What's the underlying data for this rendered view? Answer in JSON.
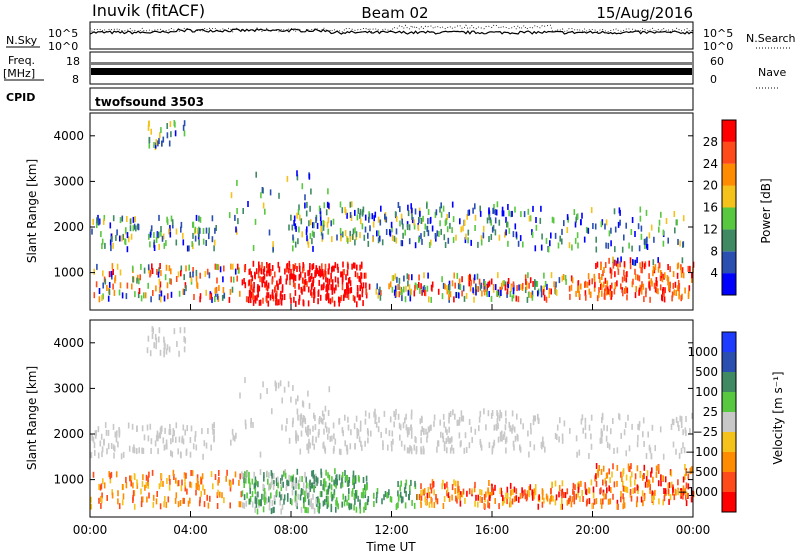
{
  "header": {
    "station": "Inuvik (fitACF)",
    "beam": "Beam 02",
    "date": "15/Aug/2016"
  },
  "side_labels": {
    "nsky": "N.Sky",
    "nsearch": "N.Search",
    "freq": "Freq.",
    "freq_unit": "[MHz]",
    "nave": "Nave",
    "cpid": "CPID",
    "cpid_value": "twofsound 3503"
  },
  "noise_panel": {
    "ticks": [
      "10^5",
      "10^0"
    ]
  },
  "freq_panel": {
    "left_ticks": [
      "18",
      "8"
    ],
    "right_ticks": [
      "60",
      "0"
    ]
  },
  "chart_data": [
    {
      "type": "heatmap",
      "panel": "power",
      "ylabel": "Slant Range [km]",
      "yticks": [
        1000,
        2000,
        3000,
        4000
      ],
      "ylim": [
        180,
        4500
      ],
      "xlim": [
        0,
        24
      ],
      "colorbar_label": "Power [dB]",
      "colorbar_ticks": [
        "4",
        "8",
        "12",
        "16",
        "20",
        "24",
        "28"
      ],
      "colorbar_colors": [
        "#0000ff",
        "#2a4fb0",
        "#3f8a63",
        "#58c840",
        "#f5c21b",
        "#ff8c00",
        "#ff4a1a",
        "#ff0000"
      ]
    },
    {
      "type": "heatmap",
      "panel": "velocity",
      "ylabel": "Slant Range [km]",
      "yticks": [
        1000,
        2000,
        3000,
        4000
      ],
      "ylim": [
        180,
        4500
      ],
      "xlim": [
        0,
        24
      ],
      "xticks": [
        "00:00",
        "04:00",
        "08:00",
        "12:00",
        "16:00",
        "20:00",
        "00:00"
      ],
      "xlabel": "Time UT",
      "colorbar_label": "Velocity [m s⁻¹]",
      "colorbar_ticks": [
        "1000",
        "500",
        "100",
        "25",
        "−25",
        "−100",
        "−500",
        "−1000"
      ],
      "colorbar_colors": [
        "#1e3cff",
        "#2a4fb0",
        "#3f8a63",
        "#58c840",
        "#c8c8c8",
        "#f5c21b",
        "#ff8c00",
        "#ff4a1a",
        "#ff0000"
      ]
    }
  ]
}
